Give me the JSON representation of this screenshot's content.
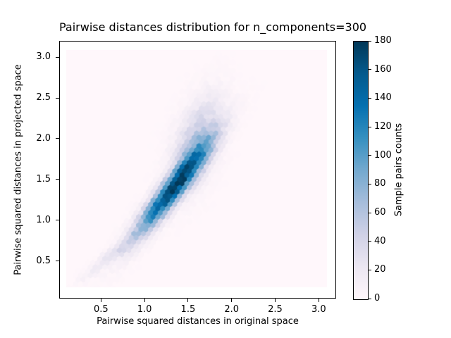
{
  "figure": {
    "background_color": "#ffffff",
    "text_color": "#000000"
  },
  "chart_data": {
    "type": "hexbin",
    "title": "Pairwise distances distribution for n_components=300",
    "xlabel": "Pairwise squared distances in original space",
    "ylabel": "Pairwise squared distances in projected space",
    "xlim": [
      0.02,
      3.2
    ],
    "ylim": [
      0.04,
      3.2
    ],
    "x_ticks": [
      0.5,
      1.0,
      1.5,
      2.0,
      2.5,
      3.0
    ],
    "y_ticks": [
      0.5,
      1.0,
      1.5,
      2.0,
      2.5,
      3.0
    ],
    "grid": false,
    "legend": false,
    "hex_extent": {
      "x": [
        0.1,
        3.09
      ],
      "y": [
        0.18,
        3.09
      ]
    },
    "gridsize": 54,
    "vmin": 0,
    "vmax": 180,
    "colormap": {
      "name": "PuBu",
      "stops": [
        [
          0.0,
          "#fff7fb"
        ],
        [
          0.125,
          "#ece7f2"
        ],
        [
          0.25,
          "#d0d1e6"
        ],
        [
          0.375,
          "#a6bddb"
        ],
        [
          0.5,
          "#74a9cf"
        ],
        [
          0.625,
          "#3690c0"
        ],
        [
          0.75,
          "#0570b0"
        ],
        [
          0.875,
          "#045a8d"
        ],
        [
          1.0,
          "#023858"
        ]
      ]
    },
    "colorbar": {
      "label": "Sample pairs counts",
      "ticks": [
        0,
        20,
        40,
        60,
        80,
        100,
        120,
        140,
        160,
        180
      ]
    },
    "density_model": {
      "description": "Sample-pair count density: elongated correlated blob along the diagonal, peak count ~180 near (1.35, 1.42), faint plume up to (1.7, 2.5) and thin tail down to (0.3, 0.35). Approximated as a sum of bivariate Gaussian components.",
      "peak": {
        "x": 1.35,
        "y": 1.42,
        "count": 180
      },
      "components": [
        {
          "amplitude": 172,
          "mean": [
            1.32,
            1.38
          ],
          "sigma": [
            0.28,
            0.38
          ],
          "rho": 0.93
        },
        {
          "amplitude": 55,
          "mean": [
            1.6,
            1.95
          ],
          "sigma": [
            0.18,
            0.35
          ],
          "rho": 0.5
        },
        {
          "amplitude": 25,
          "mean": [
            0.65,
            0.6
          ],
          "sigma": [
            0.22,
            0.2
          ],
          "rho": 0.95
        }
      ],
      "noise_scale": 1.3
    }
  }
}
